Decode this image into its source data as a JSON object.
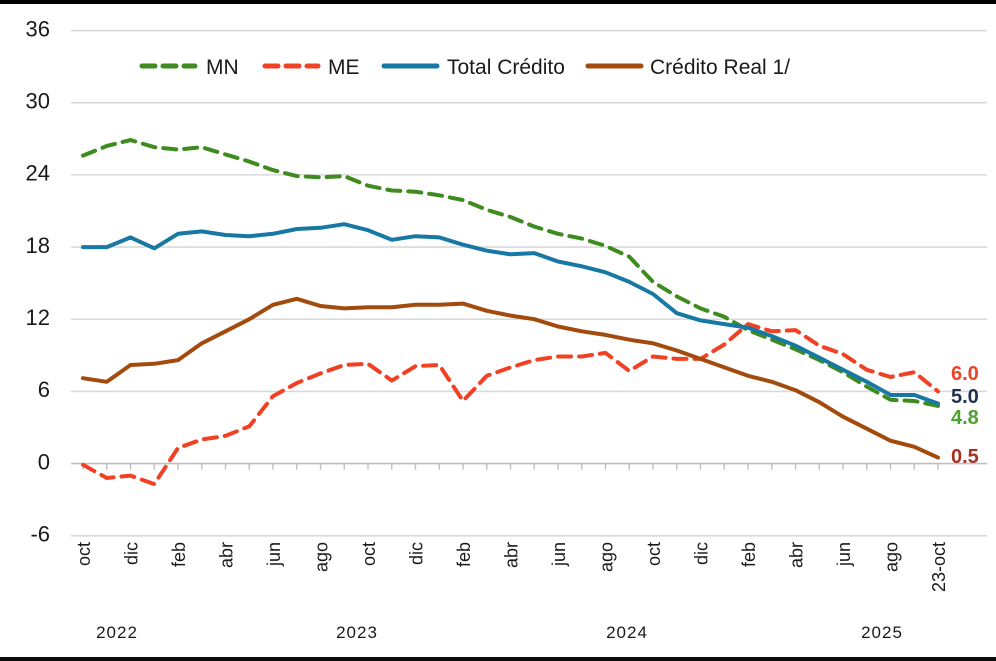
{
  "chart_data": {
    "type": "line",
    "title": "",
    "x": [
      "oct-22",
      "nov-22",
      "dic-22",
      "ene-23",
      "feb-23",
      "mar-23",
      "abr-23",
      "may-23",
      "jun-23",
      "jul-23",
      "ago-23",
      "sep-23",
      "oct-23",
      "nov-23",
      "dic-23",
      "ene-24",
      "feb-24",
      "mar-24",
      "abr-24",
      "may-24",
      "jun-24",
      "jul-24",
      "ago-24",
      "sep-24",
      "oct-24",
      "nov-24",
      "dic-24",
      "ene-25",
      "feb-25",
      "mar-25",
      "abr-25",
      "may-25",
      "jun-25",
      "jul-25",
      "ago-25",
      "sep-25",
      "23-oct-25"
    ],
    "x_tick_labels": [
      "oct",
      "dic",
      "feb",
      "abr",
      "jun",
      "ago",
      "oct",
      "dic",
      "feb",
      "abr",
      "jun",
      "ago",
      "oct",
      "dic",
      "feb",
      "abr",
      "jun",
      "ago",
      "23-oct"
    ],
    "year_labels": [
      "2022",
      "2023",
      "2024",
      "2025"
    ],
    "y_ticks": [
      "36",
      "30",
      "24",
      "18",
      "12",
      "6",
      "0",
      "-6"
    ],
    "ylim": [
      -6,
      36
    ],
    "grid": true,
    "legend_position": "top-center",
    "series": [
      {
        "name": "MN",
        "style": "dashed",
        "color": "#3e8b1f",
        "values": [
          25.6,
          26.4,
          26.9,
          26.3,
          26.1,
          26.3,
          25.7,
          25.1,
          24.4,
          23.9,
          23.8,
          23.9,
          23.1,
          22.7,
          22.6,
          22.3,
          21.9,
          21.1,
          20.5,
          19.7,
          19.1,
          18.7,
          18.1,
          17.2,
          15.1,
          13.9,
          12.9,
          12.2,
          11.1,
          10.3,
          9.5,
          8.6,
          7.6,
          6.4,
          5.3,
          5.2,
          4.8
        ]
      },
      {
        "name": "ME",
        "style": "dashed",
        "color": "#f04125",
        "values": [
          -0.1,
          -1.2,
          -1.0,
          -1.7,
          1.3,
          2.0,
          2.3,
          3.1,
          5.6,
          6.7,
          7.5,
          8.2,
          8.3,
          6.9,
          8.1,
          8.2,
          5.2,
          7.3,
          8.0,
          8.6,
          8.9,
          8.9,
          9.2,
          7.7,
          8.9,
          8.7,
          8.7,
          9.9,
          11.6,
          11.0,
          11.1,
          9.8,
          9.1,
          7.8,
          7.2,
          7.6,
          6.0
        ]
      },
      {
        "name": "Total Crédito",
        "style": "solid",
        "color": "#1779a3",
        "values": [
          18.0,
          18.0,
          18.8,
          17.9,
          19.1,
          19.3,
          19.0,
          18.9,
          19.1,
          19.5,
          19.6,
          19.9,
          19.4,
          18.6,
          18.9,
          18.8,
          18.2,
          17.7,
          17.4,
          17.5,
          16.8,
          16.4,
          15.9,
          15.1,
          14.1,
          12.5,
          11.9,
          11.6,
          11.3,
          10.6,
          9.8,
          8.8,
          7.8,
          6.8,
          5.7,
          5.7,
          5.0
        ]
      },
      {
        "name": "Crédito Real 1/",
        "style": "solid",
        "color": "#a34a0d",
        "values": [
          7.1,
          6.8,
          8.2,
          8.3,
          8.6,
          10.0,
          11.0,
          12.0,
          13.2,
          13.7,
          13.1,
          12.9,
          13.0,
          13.0,
          13.2,
          13.2,
          13.3,
          12.7,
          12.3,
          12.0,
          11.4,
          11.0,
          10.7,
          10.3,
          10.0,
          9.4,
          8.7,
          8.0,
          7.3,
          6.8,
          6.1,
          5.1,
          3.9,
          2.9,
          1.9,
          1.4,
          0.5
        ]
      }
    ],
    "end_labels": [
      {
        "text": "6.0",
        "value": 6.0,
        "color": "#e8432a"
      },
      {
        "text": "5.0",
        "value": 5.0,
        "color": "#1f3150"
      },
      {
        "text": "4.8",
        "value": 4.35,
        "color": "#4ba32b"
      },
      {
        "text": "0.5",
        "value": 0.5,
        "color": "#a53124"
      }
    ],
    "colors": {
      "gridline": "#d9d9d9",
      "zero_axis": "#bfbfbf",
      "tick": "#bfbfbf",
      "label_text": "#1a1a1a",
      "legend_text": "#1a1a1a"
    }
  }
}
